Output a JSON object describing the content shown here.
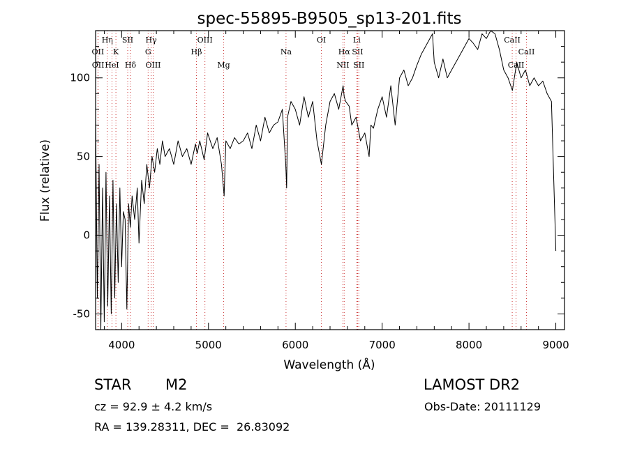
{
  "chart_data": {
    "type": "line",
    "title": "spec-55895-B9505_sp13-201.fits",
    "xlabel": "Wavelength (Å)",
    "ylabel": "Flux (relative)",
    "xlim": [
      3700,
      9100
    ],
    "ylim": [
      -60,
      130
    ],
    "x_ticks": [
      4000,
      5000,
      6000,
      7000,
      8000,
      9000
    ],
    "y_ticks": [
      -50,
      0,
      50,
      100
    ],
    "grid": false,
    "series": [
      {
        "x": [
          3700,
          3720,
          3740,
          3760,
          3780,
          3800,
          3820,
          3840,
          3860,
          3880,
          3900,
          3920,
          3940,
          3960,
          3980,
          4000,
          4020,
          4040,
          4060,
          4080,
          4100,
          4120,
          4150,
          4180,
          4200,
          4230,
          4260,
          4290,
          4320,
          4350,
          4380,
          4410,
          4440,
          4470,
          4500,
          4550,
          4600,
          4650,
          4700,
          4750,
          4800,
          4850,
          4870,
          4900,
          4950,
          4990,
          5050,
          5100,
          5150,
          5180,
          5200,
          5250,
          5300,
          5350,
          5400,
          5450,
          5500,
          5550,
          5600,
          5650,
          5700,
          5750,
          5800,
          5850,
          5890,
          5900,
          5910,
          5950,
          6000,
          6050,
          6100,
          6150,
          6200,
          6250,
          6300,
          6350,
          6400,
          6450,
          6500,
          6550,
          6563,
          6580,
          6620,
          6650,
          6700,
          6750,
          6800,
          6850,
          6870,
          6900,
          6950,
          7000,
          7050,
          7100,
          7150,
          7200,
          7250,
          7300,
          7350,
          7400,
          7450,
          7500,
          7550,
          7580,
          7600,
          7650,
          7700,
          7750,
          7800,
          7850,
          7900,
          7950,
          8000,
          8050,
          8100,
          8150,
          8200,
          8250,
          8300,
          8350,
          8400,
          8450,
          8500,
          8550,
          8600,
          8650,
          8700,
          8750,
          8800,
          8850,
          8900,
          8950,
          9000
        ],
        "y": [
          75,
          -40,
          45,
          -60,
          30,
          -55,
          40,
          -45,
          25,
          -50,
          35,
          -40,
          20,
          -30,
          30,
          -20,
          15,
          10,
          -47,
          20,
          5,
          25,
          10,
          30,
          -5,
          35,
          20,
          45,
          30,
          50,
          40,
          55,
          45,
          60,
          50,
          55,
          45,
          60,
          50,
          55,
          45,
          58,
          52,
          60,
          48,
          65,
          55,
          62,
          45,
          25,
          60,
          55,
          62,
          58,
          60,
          65,
          55,
          70,
          60,
          75,
          65,
          70,
          72,
          80,
          45,
          30,
          75,
          85,
          80,
          70,
          88,
          75,
          85,
          60,
          45,
          70,
          85,
          90,
          80,
          95,
          88,
          85,
          82,
          70,
          75,
          60,
          65,
          50,
          70,
          68,
          80,
          88,
          75,
          95,
          70,
          100,
          105,
          95,
          100,
          108,
          115,
          120,
          125,
          128,
          110,
          100,
          112,
          100,
          105,
          110,
          115,
          120,
          125,
          122,
          118,
          128,
          125,
          130,
          128,
          118,
          105,
          100,
          92,
          110,
          100,
          105,
          95,
          100,
          95,
          98,
          90,
          85,
          -10
        ]
      }
    ],
    "line_markers": [
      {
        "name": "OII",
        "x": 3727,
        "tier": 2
      },
      {
        "name": "OII",
        "x": 3729,
        "tier": 3
      },
      {
        "name": "Hη",
        "x": 3835,
        "tier": 0
      },
      {
        "name": "HeI",
        "x": 3889,
        "tier": 3
      },
      {
        "name": "K",
        "x": 3934,
        "tier": 1
      },
      {
        "name": "SII",
        "x": 4070,
        "tier": 0
      },
      {
        "name": "Hδ",
        "x": 4102,
        "tier": 3
      },
      {
        "name": "Hγ",
        "x": 4340,
        "tier": 0
      },
      {
        "name": "G",
        "x": 4305,
        "tier": 1
      },
      {
        "name": "OIII",
        "x": 4363,
        "tier": 3
      },
      {
        "name": "OIII",
        "x": 4959,
        "tier": 0
      },
      {
        "name": "Hβ",
        "x": 4861,
        "tier": 2
      },
      {
        "name": "Mg",
        "x": 5175,
        "tier": 3
      },
      {
        "name": "Na",
        "x": 5893,
        "tier": 2
      },
      {
        "name": "OI",
        "x": 6300,
        "tier": 0
      },
      {
        "name": "Hα",
        "x": 6563,
        "tier": 2
      },
      {
        "name": "NII",
        "x": 6548,
        "tier": 3
      },
      {
        "name": "Li",
        "x": 6708,
        "tier": 0
      },
      {
        "name": "SII",
        "x": 6717,
        "tier": 2
      },
      {
        "name": "SII",
        "x": 6731,
        "tier": 3
      },
      {
        "name": "CaII",
        "x": 8498,
        "tier": 0
      },
      {
        "name": "CaII",
        "x": 8542,
        "tier": 3
      },
      {
        "name": "CaII",
        "x": 8662,
        "tier": 2
      }
    ]
  },
  "info": {
    "class_label": "STAR",
    "subclass": "M2",
    "survey": "LAMOST DR2",
    "redshift_text": "cz = 92.9 ± 4.2 km/s",
    "obs_date_text": "Obs-Date: 20111129",
    "coords_text": "RA = 139.28311, DEC =  26.83092"
  },
  "colors": {
    "spectrum": "#000000",
    "marker_line": "#cc3333",
    "axis": "#000000",
    "background": "#ffffff"
  }
}
